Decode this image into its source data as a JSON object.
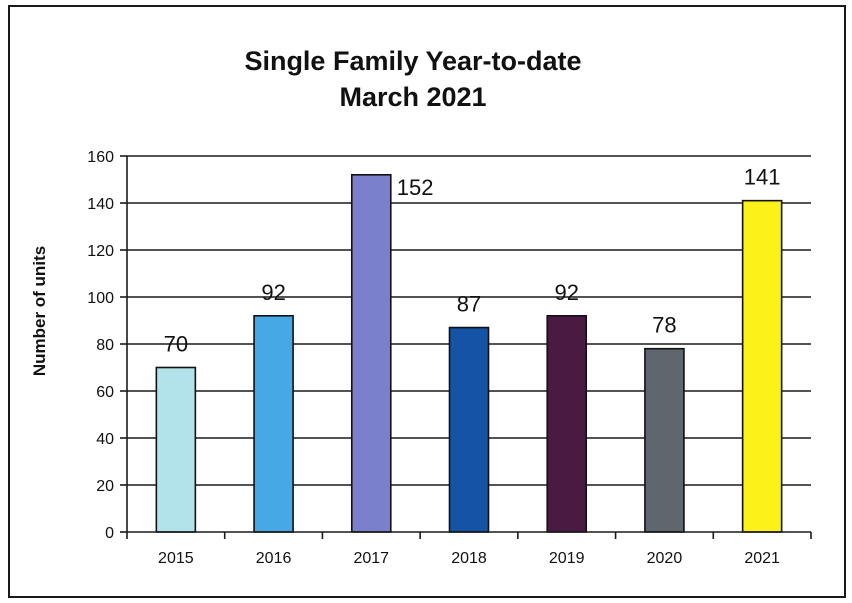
{
  "chart_data": {
    "type": "bar",
    "title": "Single Family Year-to-date",
    "subtitle": "March 2021",
    "xlabel": "",
    "ylabel": "Number of units",
    "ylim": [
      0,
      160
    ],
    "yticks": [
      0,
      20,
      40,
      60,
      80,
      100,
      120,
      140,
      160
    ],
    "grid": true,
    "categories": [
      "2015",
      "2016",
      "2017",
      "2018",
      "2019",
      "2020",
      "2021"
    ],
    "values": [
      70,
      92,
      152,
      87,
      92,
      78,
      141
    ],
    "data_labels": [
      "70",
      "92",
      "152",
      "87",
      "92",
      "78",
      "141"
    ],
    "bar_colors": [
      "#b3e3ea",
      "#46a9e6",
      "#7b80cc",
      "#1553a6",
      "#4a1a42",
      "#5f666d",
      "#fcf21a"
    ]
  }
}
